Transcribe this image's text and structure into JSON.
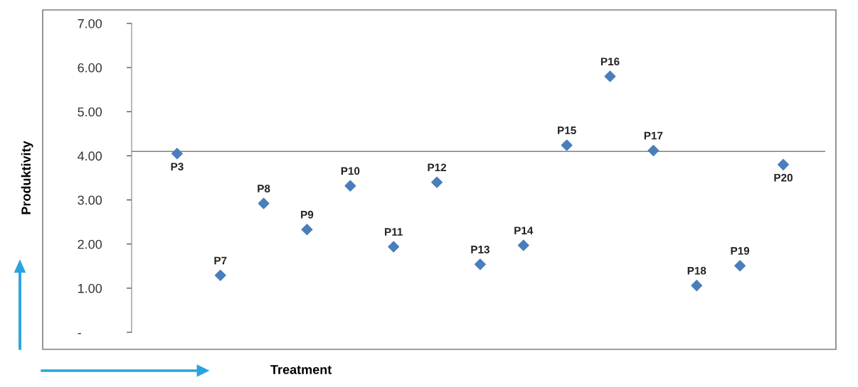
{
  "chart_data": {
    "type": "scatter",
    "xlabel": "Treatment",
    "ylabel": "Produktivity",
    "categories": [
      "P3",
      "P7",
      "P8",
      "P9",
      "P10",
      "P11",
      "P12",
      "P13",
      "P14",
      "P15",
      "P16",
      "P17",
      "P18",
      "P19",
      "P20"
    ],
    "series": [
      {
        "color": "#4a7ebb",
        "values": [
          4.05,
          1.29,
          2.92,
          2.33,
          3.32,
          1.94,
          3.4,
          1.54,
          1.97,
          4.24,
          5.8,
          4.12,
          1.06,
          1.51,
          3.8
        ]
      }
    ],
    "ylim": [
      0,
      7
    ],
    "yticks": [
      {
        "value": 0,
        "label": "-"
      },
      {
        "value": 1,
        "label": "1.00"
      },
      {
        "value": 2,
        "label": "2.00"
      },
      {
        "value": 3,
        "label": "3.00"
      },
      {
        "value": 4,
        "label": "4.00"
      },
      {
        "value": 5,
        "label": "5.00"
      },
      {
        "value": 6,
        "label": "6.00"
      },
      {
        "value": 7,
        "label": "7.00"
      }
    ],
    "ref_lines": [
      {
        "axis": "y",
        "value": 4.1,
        "color": "#808080"
      }
    ],
    "marker": "diamond",
    "tick_labels": "y",
    "grid": false,
    "legend": false
  }
}
